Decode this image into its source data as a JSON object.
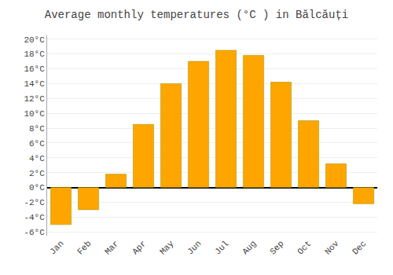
{
  "chart_data": {
    "type": "bar",
    "title": "Average monthly temperatures (°C ) in Bălcăuți",
    "categories": [
      "Jan",
      "Feb",
      "Mar",
      "Apr",
      "May",
      "Jun",
      "Jul",
      "Aug",
      "Sep",
      "Oct",
      "Nov",
      "Dec"
    ],
    "values": [
      -5.0,
      -3.0,
      1.8,
      8.5,
      14.0,
      17.0,
      18.5,
      17.8,
      14.2,
      9.0,
      3.2,
      -2.2
    ],
    "color": "#FFA500",
    "ylim": [
      -6.5,
      20.5
    ],
    "yticks": [
      {
        "value": -6,
        "label": "-6°C"
      },
      {
        "value": -4,
        "label": "-4°C"
      },
      {
        "value": -2,
        "label": "-2°C"
      },
      {
        "value": 0,
        "label": "0°C"
      },
      {
        "value": 2,
        "label": "2°C"
      },
      {
        "value": 4,
        "label": "4°C"
      },
      {
        "value": 6,
        "label": "6°C"
      },
      {
        "value": 8,
        "label": "8°C"
      },
      {
        "value": 10,
        "label": "10°C"
      },
      {
        "value": 12,
        "label": "12°C"
      },
      {
        "value": 14,
        "label": "14°C"
      },
      {
        "value": 16,
        "label": "16°C"
      },
      {
        "value": 18,
        "label": "18°C"
      },
      {
        "value": 20,
        "label": "20°C"
      }
    ],
    "grid": true
  }
}
